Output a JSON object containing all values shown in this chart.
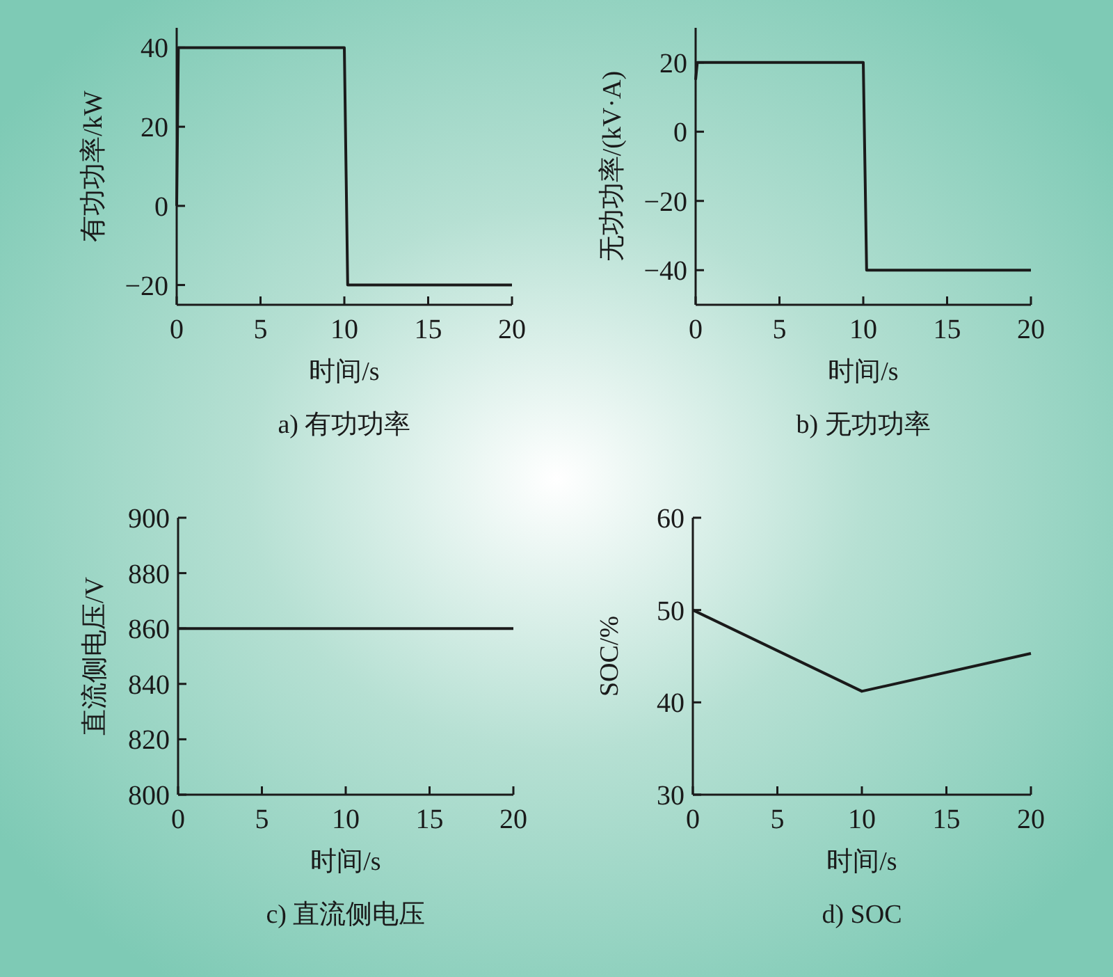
{
  "chart_data": [
    {
      "type": "line",
      "title": "a) 有功功率",
      "xlabel": "时间/s",
      "ylabel": "有功功率/kW",
      "xlim": [
        0,
        20
      ],
      "xticks": [
        0,
        5,
        10,
        15,
        20
      ],
      "ylim": [
        -25,
        45
      ],
      "yticks": [
        -20,
        0,
        20,
        40
      ],
      "series": [
        {
          "color": "#1a1a1a",
          "x": [
            0,
            0.1,
            10,
            10.2,
            20
          ],
          "values": [
            0,
            40,
            40,
            -20,
            -20
          ]
        }
      ]
    },
    {
      "type": "line",
      "title": "b) 无功功率",
      "xlabel": "时间/s",
      "ylabel": "无功功率/(kV·A)",
      "xlim": [
        0,
        20
      ],
      "xticks": [
        0,
        5,
        10,
        15,
        20
      ],
      "ylim": [
        -50,
        30
      ],
      "yticks": [
        -40,
        -20,
        0,
        20
      ],
      "series": [
        {
          "color": "#1a1a1a",
          "x": [
            0,
            0.1,
            10,
            10.2,
            20
          ],
          "values": [
            15,
            20,
            20,
            -40,
            -40
          ]
        }
      ]
    },
    {
      "type": "line",
      "title": "c) 直流侧电压",
      "xlabel": "时间/s",
      "ylabel": "直流侧电压/V",
      "xlim": [
        0,
        20
      ],
      "xticks": [
        0,
        5,
        10,
        15,
        20
      ],
      "ylim": [
        800,
        900
      ],
      "yticks": [
        800,
        820,
        840,
        860,
        880,
        900
      ],
      "series": [
        {
          "color": "#1a1a1a",
          "x": [
            0,
            20
          ],
          "values": [
            860,
            860
          ]
        }
      ]
    },
    {
      "type": "line",
      "title": "d) SOC",
      "xlabel": "时间/s",
      "ylabel": "SOC/%",
      "xlim": [
        0,
        20
      ],
      "xticks": [
        0,
        5,
        10,
        15,
        20
      ],
      "ylim": [
        30,
        60
      ],
      "yticks": [
        30,
        40,
        50,
        60
      ],
      "series": [
        {
          "color": "#1a1a1a",
          "x": [
            0,
            10,
            20
          ],
          "values": [
            50,
            41.2,
            45.3
          ]
        }
      ]
    }
  ]
}
